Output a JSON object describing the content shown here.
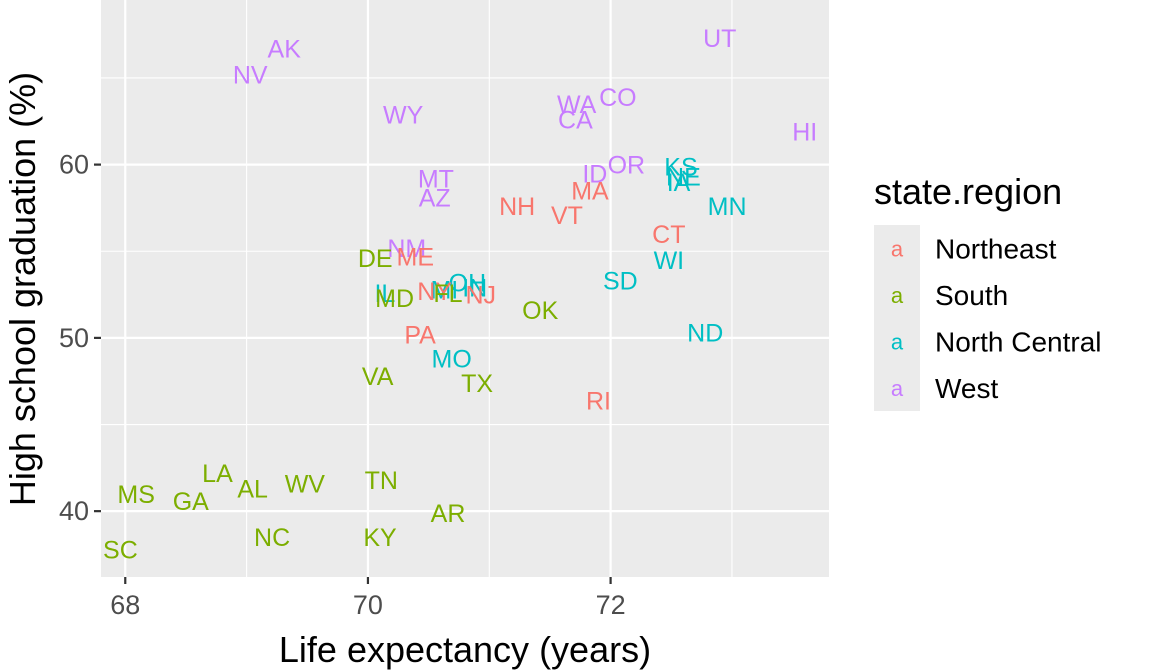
{
  "chart_data": {
    "type": "scatter",
    "xlabel": "Life expectancy (years)",
    "ylabel": "High school graduation (%)",
    "xlim": [
      67.8,
      73.8
    ],
    "ylim": [
      36.2,
      69.5
    ],
    "x_ticks": [
      68,
      70,
      72
    ],
    "y_ticks": [
      40,
      50,
      60
    ],
    "grid": true,
    "legend": {
      "title": "state.region",
      "placement": "right",
      "key_glyph": "a",
      "entries": [
        {
          "name": "Northeast",
          "color": "#F8766D"
        },
        {
          "name": "South",
          "color": "#7CAE00"
        },
        {
          "name": "North Central",
          "color": "#00BFC4"
        },
        {
          "name": "West",
          "color": "#C77CFF"
        }
      ]
    },
    "points": [
      {
        "label": "AK",
        "x": 69.31,
        "y": 66.7,
        "region": "West"
      },
      {
        "label": "NV",
        "x": 69.03,
        "y": 65.2,
        "region": "West"
      },
      {
        "label": "UT",
        "x": 72.9,
        "y": 67.3,
        "region": "West"
      },
      {
        "label": "WY",
        "x": 70.29,
        "y": 62.9,
        "region": "West"
      },
      {
        "label": "WA",
        "x": 71.72,
        "y": 63.5,
        "region": "West"
      },
      {
        "label": "CO",
        "x": 72.06,
        "y": 63.9,
        "region": "West"
      },
      {
        "label": "CA",
        "x": 71.71,
        "y": 62.6,
        "region": "West"
      },
      {
        "label": "HI",
        "x": 73.6,
        "y": 61.9,
        "region": "West"
      },
      {
        "label": "OR",
        "x": 72.13,
        "y": 60.0,
        "region": "West"
      },
      {
        "label": "ID",
        "x": 71.87,
        "y": 59.5,
        "region": "West"
      },
      {
        "label": "MT",
        "x": 70.56,
        "y": 59.2,
        "region": "West"
      },
      {
        "label": "AZ",
        "x": 70.55,
        "y": 58.1,
        "region": "West"
      },
      {
        "label": "NM",
        "x": 70.32,
        "y": 55.2,
        "region": "West"
      },
      {
        "label": "KS",
        "x": 72.58,
        "y": 59.9,
        "region": "North Central"
      },
      {
        "label": "NE",
        "x": 72.6,
        "y": 59.3,
        "region": "North Central"
      },
      {
        "label": "IA",
        "x": 72.56,
        "y": 59.0,
        "region": "North Central"
      },
      {
        "label": "MN",
        "x": 72.96,
        "y": 57.6,
        "region": "North Central"
      },
      {
        "label": "WI",
        "x": 72.48,
        "y": 54.5,
        "region": "North Central"
      },
      {
        "label": "SD",
        "x": 72.08,
        "y": 53.3,
        "region": "North Central"
      },
      {
        "label": "OH",
        "x": 70.82,
        "y": 53.2,
        "region": "North Central"
      },
      {
        "label": "IN",
        "x": 70.88,
        "y": 52.9,
        "region": "North Central"
      },
      {
        "label": "IL",
        "x": 70.14,
        "y": 52.6,
        "region": "North Central"
      },
      {
        "label": "MI",
        "x": 70.63,
        "y": 52.8,
        "region": "North Central"
      },
      {
        "label": "ND",
        "x": 72.78,
        "y": 50.3,
        "region": "North Central"
      },
      {
        "label": "MO",
        "x": 70.69,
        "y": 48.8,
        "region": "North Central"
      },
      {
        "label": "NH",
        "x": 71.23,
        "y": 57.6,
        "region": "Northeast"
      },
      {
        "label": "MA",
        "x": 71.83,
        "y": 58.5,
        "region": "Northeast"
      },
      {
        "label": "VT",
        "x": 71.64,
        "y": 57.1,
        "region": "Northeast"
      },
      {
        "label": "CT",
        "x": 72.48,
        "y": 56.0,
        "region": "Northeast"
      },
      {
        "label": "ME",
        "x": 70.39,
        "y": 54.7,
        "region": "Northeast"
      },
      {
        "label": "NY",
        "x": 70.55,
        "y": 52.7,
        "region": "Northeast"
      },
      {
        "label": "NJ",
        "x": 70.93,
        "y": 52.5,
        "region": "Northeast"
      },
      {
        "label": "PA",
        "x": 70.43,
        "y": 50.2,
        "region": "Northeast"
      },
      {
        "label": "RI",
        "x": 71.9,
        "y": 46.4,
        "region": "Northeast"
      },
      {
        "label": "DE",
        "x": 70.06,
        "y": 54.6,
        "region": "South"
      },
      {
        "label": "MD",
        "x": 70.22,
        "y": 52.3,
        "region": "South"
      },
      {
        "label": "FL",
        "x": 70.66,
        "y": 52.6,
        "region": "South"
      },
      {
        "label": "OK",
        "x": 71.42,
        "y": 51.6,
        "region": "South"
      },
      {
        "label": "VA",
        "x": 70.08,
        "y": 47.8,
        "region": "South"
      },
      {
        "label": "TX",
        "x": 70.9,
        "y": 47.4,
        "region": "South"
      },
      {
        "label": "LA",
        "x": 68.76,
        "y": 42.2,
        "region": "South"
      },
      {
        "label": "AL",
        "x": 69.05,
        "y": 41.3,
        "region": "South"
      },
      {
        "label": "WV",
        "x": 69.48,
        "y": 41.6,
        "region": "South"
      },
      {
        "label": "TN",
        "x": 70.11,
        "y": 41.8,
        "region": "South"
      },
      {
        "label": "MS",
        "x": 68.09,
        "y": 41.0,
        "region": "South"
      },
      {
        "label": "GA",
        "x": 68.54,
        "y": 40.6,
        "region": "South"
      },
      {
        "label": "AR",
        "x": 70.66,
        "y": 39.9,
        "region": "South"
      },
      {
        "label": "NC",
        "x": 69.21,
        "y": 38.5,
        "region": "South"
      },
      {
        "label": "KY",
        "x": 70.1,
        "y": 38.5,
        "region": "South"
      },
      {
        "label": "SC",
        "x": 67.96,
        "y": 37.8,
        "region": "South"
      }
    ]
  }
}
